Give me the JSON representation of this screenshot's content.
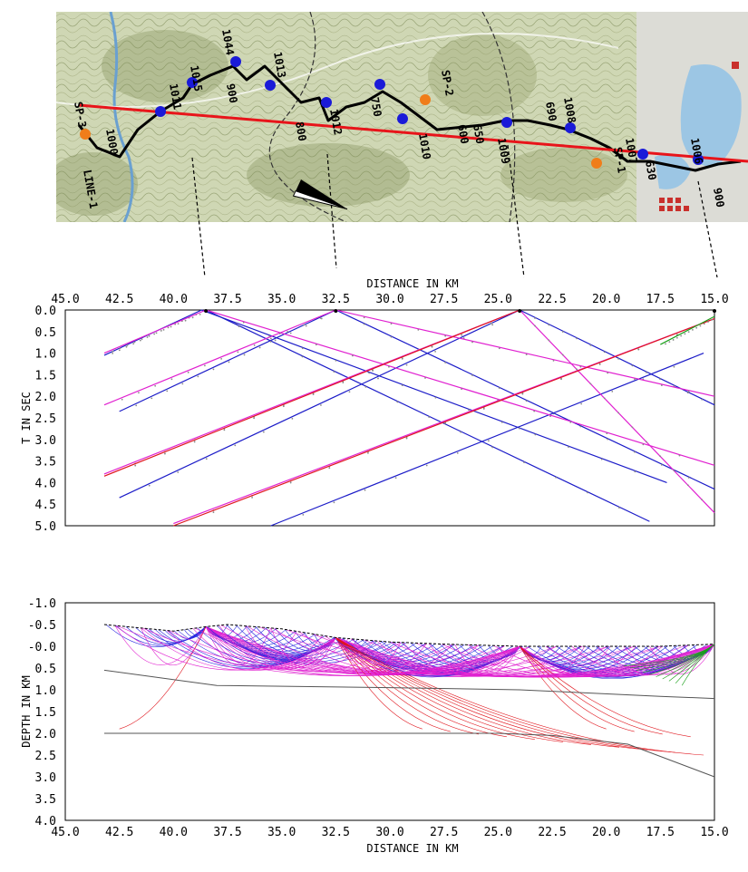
{
  "map": {
    "labels": [
      "LINE-1",
      "SP-3",
      "SP-2",
      "SP-1",
      "1015",
      "1011",
      "1044",
      "1013",
      "1012",
      "1010",
      "1009",
      "1008",
      "1007",
      "1006",
      "1000",
      "900",
      "800",
      "750",
      "650",
      "690",
      "600",
      "630",
      "900"
    ],
    "colors": {
      "profile_line": "#e8141a",
      "receiver": "#1a1ad8",
      "shot": "#f07d1a",
      "route": "#000000"
    }
  },
  "chart_data": [
    {
      "type": "line",
      "title": "",
      "xlabel": "DISTANCE IN KM",
      "ylabel": "T IN SEC",
      "xlim": [
        45.0,
        15.0
      ],
      "ylim": [
        0.0,
        5.0
      ],
      "x_ticks": [
        "45.0",
        "42.5",
        "40.0",
        "37.5",
        "35.0",
        "32.5",
        "30.0",
        "27.5",
        "25.0",
        "22.5",
        "20.0",
        "17.5",
        "15.0"
      ],
      "y_ticks": [
        "0.0",
        "0.5",
        "1.0",
        "1.5",
        "2.0",
        "2.5",
        "3.0",
        "3.5",
        "4.0",
        "4.5",
        "5.0"
      ],
      "grid": false,
      "shots": [
        38.5,
        32.5,
        24.0,
        15.0
      ],
      "series": [
        {
          "color": "blue",
          "points": [
            [
              38.7,
              0.0
            ],
            [
              43.2,
              1.05
            ]
          ]
        },
        {
          "color": "blue",
          "points": [
            [
              38.7,
              0.0
            ],
            [
              17.2,
              4.0
            ]
          ]
        },
        {
          "color": "blue",
          "points": [
            [
              32.5,
              0.0
            ],
            [
              42.5,
              2.35
            ]
          ]
        },
        {
          "color": "blue",
          "points": [
            [
              32.5,
              0.0
            ],
            [
              15.0,
              4.15
            ]
          ]
        },
        {
          "color": "blue",
          "points": [
            [
              24.0,
              0.0
            ],
            [
              42.5,
              4.35
            ]
          ]
        },
        {
          "color": "blue",
          "points": [
            [
              24.0,
              0.0
            ],
            [
              15.0,
              2.2
            ]
          ]
        },
        {
          "color": "blue",
          "points": [
            [
              38.5,
              0.0
            ],
            [
              18.0,
              4.9
            ]
          ]
        },
        {
          "color": "blue",
          "points": [
            [
              15.5,
              1.0
            ],
            [
              35.5,
              5.0
            ]
          ]
        },
        {
          "color": "magenta",
          "points": [
            [
              38.5,
              0.0
            ],
            [
              43.2,
              1.0
            ]
          ]
        },
        {
          "color": "magenta",
          "points": [
            [
              32.5,
              0.0
            ],
            [
              43.2,
              2.2
            ]
          ]
        },
        {
          "color": "magenta",
          "points": [
            [
              32.5,
              0.0
            ],
            [
              15.0,
              2.0
            ]
          ]
        },
        {
          "color": "magenta",
          "points": [
            [
              38.5,
              0.0
            ],
            [
              15.0,
              3.6
            ]
          ]
        },
        {
          "color": "magenta",
          "points": [
            [
              24.0,
              0.0
            ],
            [
              43.2,
              3.8
            ]
          ]
        },
        {
          "color": "magenta",
          "points": [
            [
              15.0,
              0.2
            ],
            [
              40.0,
              4.95
            ]
          ]
        },
        {
          "color": "magenta",
          "points": [
            [
              24.0,
              0.0
            ],
            [
              15.0,
              4.7
            ]
          ]
        },
        {
          "color": "red",
          "points": [
            [
              24.0,
              0.0
            ],
            [
              43.2,
              3.85
            ]
          ]
        },
        {
          "color": "red",
          "points": [
            [
              15.0,
              0.2
            ],
            [
              40.0,
              5.0
            ]
          ]
        },
        {
          "color": "green",
          "points": [
            [
              15.0,
              0.15
            ],
            [
              17.5,
              0.8
            ]
          ]
        }
      ]
    },
    {
      "type": "line",
      "title": "",
      "xlabel": "DISTANCE IN KM",
      "ylabel": "DEPTH IN KM",
      "xlim": [
        45.0,
        15.0
      ],
      "ylim": [
        -1.0,
        4.0
      ],
      "x_ticks": [
        "45.0",
        "42.5",
        "40.0",
        "37.5",
        "35.0",
        "32.5",
        "30.0",
        "27.5",
        "25.0",
        "22.5",
        "20.0",
        "17.5",
        "15.0"
      ],
      "y_ticks": [
        "-1.0",
        "-0.5",
        "-0.0",
        "0.5",
        "1.0",
        "1.5",
        "2.0",
        "2.5",
        "3.0",
        "3.5",
        "4.0"
      ],
      "grid": false,
      "surface": [
        [
          43.2,
          -0.5
        ],
        [
          40.0,
          -0.35
        ],
        [
          38.5,
          -0.45
        ],
        [
          37.5,
          -0.5
        ],
        [
          35.0,
          -0.4
        ],
        [
          32.5,
          -0.2
        ],
        [
          30.0,
          -0.1
        ],
        [
          27.5,
          -0.05
        ],
        [
          24.0,
          0.0
        ],
        [
          20.0,
          0.0
        ],
        [
          17.5,
          0.0
        ],
        [
          15.0,
          -0.05
        ]
      ],
      "interfaces": [
        [
          [
            43.2,
            0.55
          ],
          [
            38.0,
            0.9
          ],
          [
            30.0,
            0.95
          ],
          [
            24.0,
            1.0
          ],
          [
            17.5,
            1.15
          ],
          [
            15.0,
            1.2
          ]
        ],
        [
          [
            43.2,
            2.0
          ],
          [
            32.5,
            2.0
          ],
          [
            25.0,
            2.0
          ],
          [
            22.5,
            2.05
          ],
          [
            19.0,
            2.25
          ],
          [
            15.0,
            3.0
          ]
        ]
      ],
      "shots": [
        38.5,
        32.5,
        24.0,
        15.0
      ]
    }
  ]
}
